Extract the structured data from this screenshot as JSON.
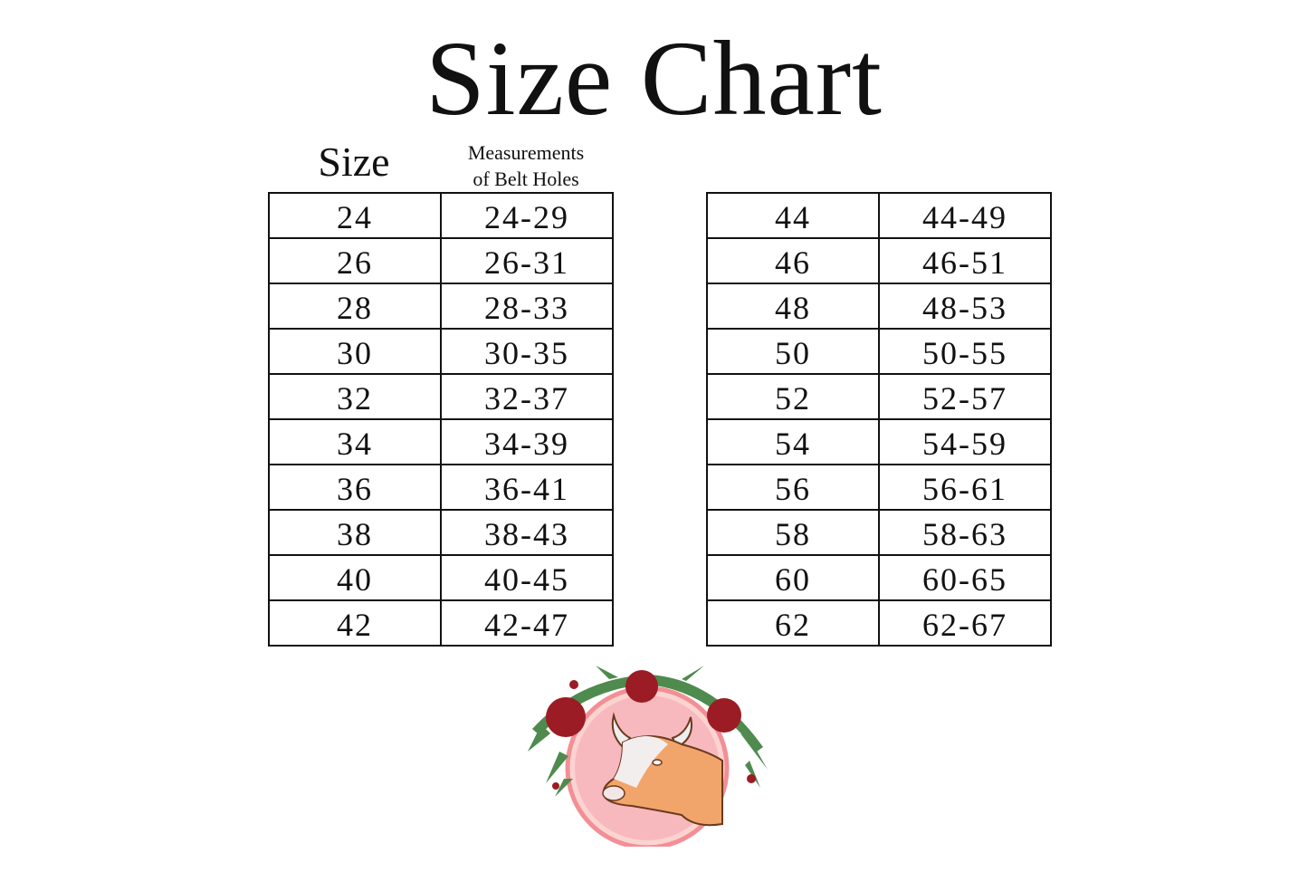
{
  "title": "Size Chart",
  "headers": {
    "size": "Size",
    "measurements": "Measurements of Belt Holes",
    "measurements_line1": "Measurements",
    "measurements_line2": "of Belt Holes"
  },
  "left_table": [
    {
      "size": "24",
      "range": "24-29"
    },
    {
      "size": "26",
      "range": "26-31"
    },
    {
      "size": "28",
      "range": "28-33"
    },
    {
      "size": "30",
      "range": "30-35"
    },
    {
      "size": "32",
      "range": "32-37"
    },
    {
      "size": "34",
      "range": "34-39"
    },
    {
      "size": "36",
      "range": "36-41"
    },
    {
      "size": "38",
      "range": "38-43"
    },
    {
      "size": "40",
      "range": "40-45"
    },
    {
      "size": "42",
      "range": "42-47"
    }
  ],
  "right_table": [
    {
      "size": "44",
      "range": "44-49"
    },
    {
      "size": "46",
      "range": "46-51"
    },
    {
      "size": "48",
      "range": "48-53"
    },
    {
      "size": "50",
      "range": "50-55"
    },
    {
      "size": "52",
      "range": "52-57"
    },
    {
      "size": "54",
      "range": "54-59"
    },
    {
      "size": "56",
      "range": "56-61"
    },
    {
      "size": "58",
      "range": "58-63"
    },
    {
      "size": "60",
      "range": "60-65"
    },
    {
      "size": "62",
      "range": "62-67"
    }
  ],
  "logo": {
    "icon": "bull-with-roses-logo",
    "colors": {
      "circle": "#f7b9bd",
      "bull": "#f2a56a",
      "rose": "#9b1c24",
      "leaf": "#4f8a4f"
    }
  }
}
